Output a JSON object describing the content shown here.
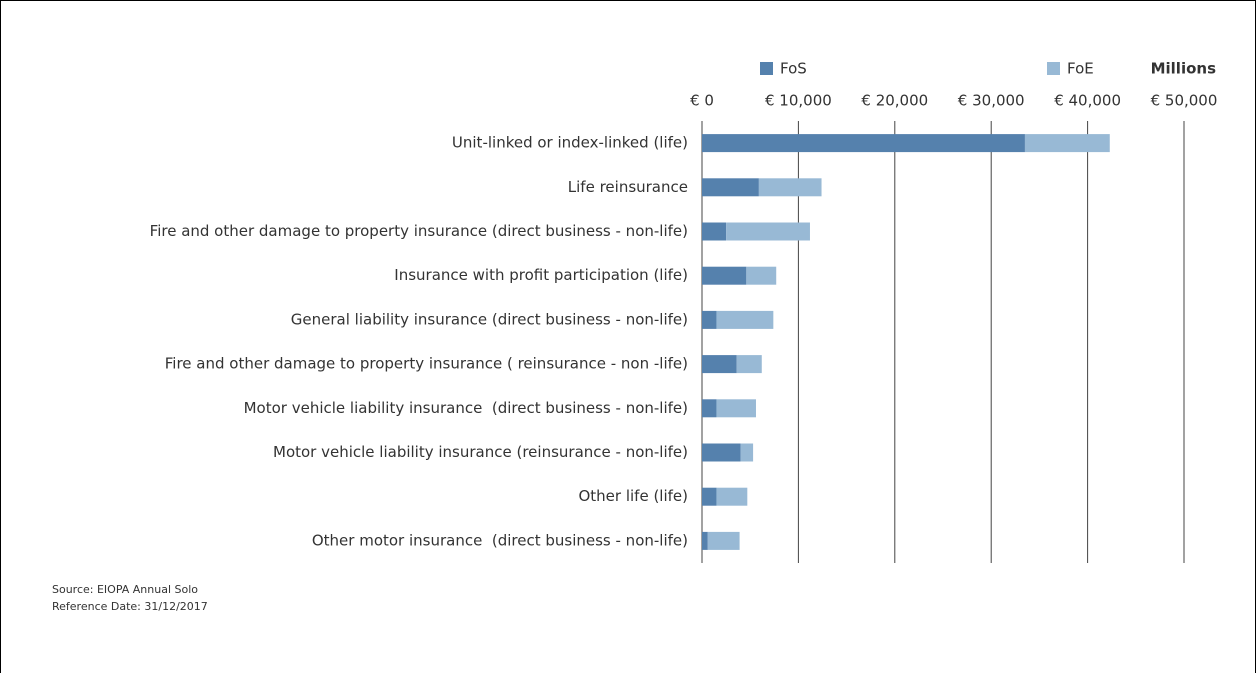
{
  "chart_data": {
    "type": "bar",
    "orientation": "horizontal",
    "stacked": true,
    "categories": [
      "Unit-linked or index-linked (life)",
      "Life reinsurance",
      "Fire and other damage to property insurance (direct business - non-life)",
      "Insurance with profit participation (life)",
      "General liability insurance (direct business - non-life)",
      "Fire and other damage to property insurance ( reinsurance - non -life)",
      "Motor vehicle liability insurance  (direct business - non-life)",
      "Motor vehicle liability insurance (reinsurance - non-life)",
      "Other life (life)",
      "Other motor insurance  (direct business - non-life)"
    ],
    "series": [
      {
        "name": "FoS",
        "color": "#5581ad",
        "values": [
          33500,
          5900,
          2500,
          4600,
          1500,
          3600,
          1500,
          4000,
          1500,
          600
        ]
      },
      {
        "name": "FoE",
        "color": "#98b9d5",
        "values": [
          8800,
          6500,
          8700,
          3100,
          5900,
          2600,
          4100,
          1300,
          3200,
          3300
        ]
      }
    ],
    "xlabel": "Millions",
    "xlim": [
      0,
      50000
    ],
    "xticks": [
      {
        "value": 0,
        "label": "€ 0"
      },
      {
        "value": 10000,
        "label": "€ 10,000"
      },
      {
        "value": 20000,
        "label": "€ 20,000"
      },
      {
        "value": 30000,
        "label": "€ 30,000"
      },
      {
        "value": 40000,
        "label": "€ 40,000"
      },
      {
        "value": 50000,
        "label": "€ 50,000"
      }
    ],
    "grid": true,
    "notes": [
      "Source: EIOPA Annual Solo",
      "Reference Date: 31/12/2017"
    ]
  }
}
